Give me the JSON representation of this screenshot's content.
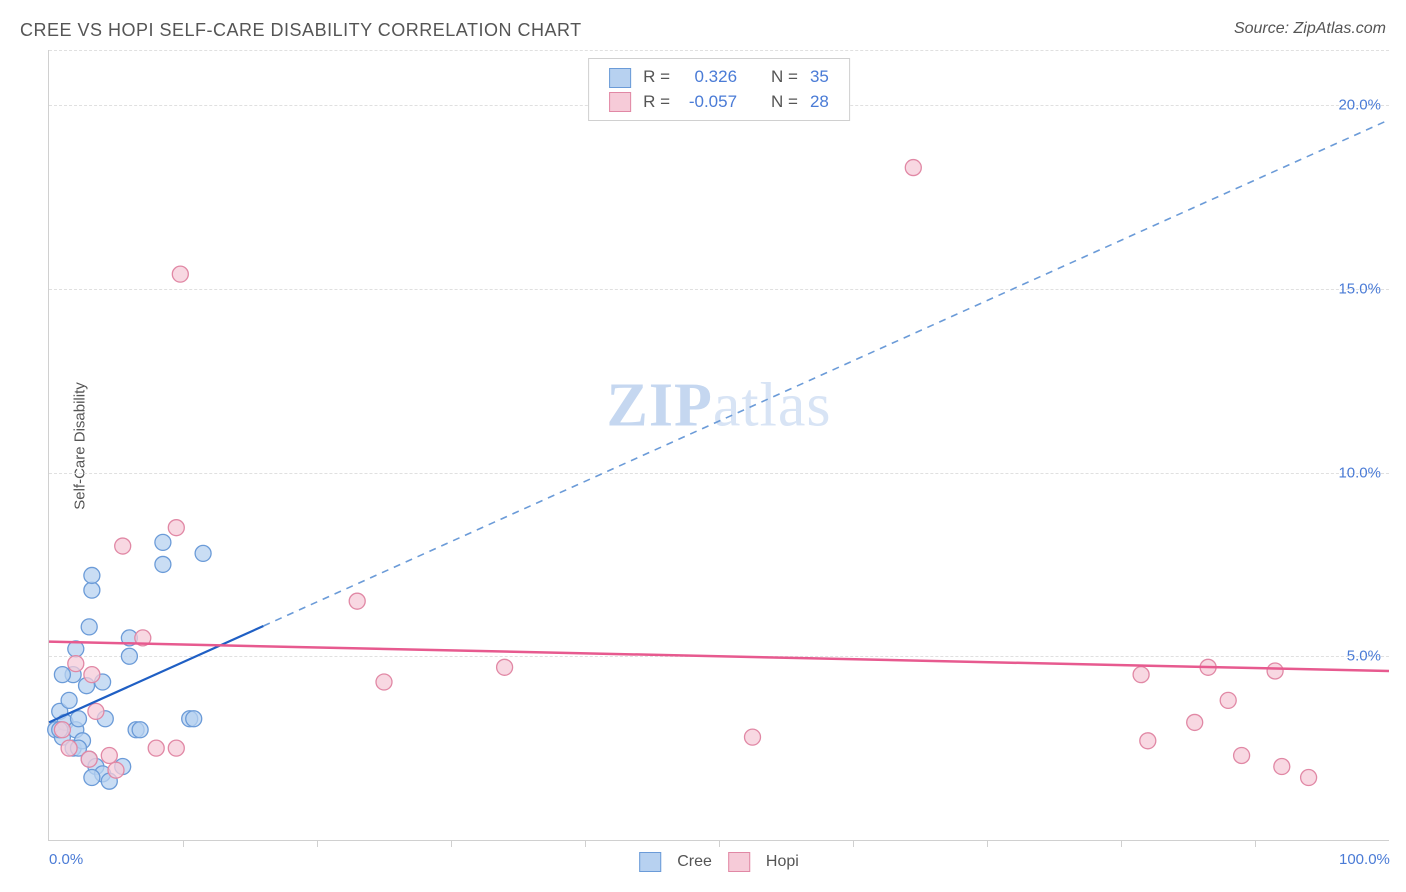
{
  "title": "CREE VS HOPI SELF-CARE DISABILITY CORRELATION CHART",
  "source": "Source: ZipAtlas.com",
  "watermark": {
    "bold": "ZIP",
    "rest": "atlas"
  },
  "chart": {
    "type": "scatter",
    "ylabel": "Self-Care Disability",
    "xlim": [
      0,
      100
    ],
    "ylim": [
      0,
      21.5
    ],
    "x_tick_labels": [
      {
        "value": 0,
        "label": "0.0%"
      },
      {
        "value": 100,
        "label": "100.0%"
      }
    ],
    "x_minor_ticks": [
      10,
      20,
      30,
      40,
      50,
      60,
      70,
      80,
      90
    ],
    "y_gridlines": [
      5,
      10,
      15,
      20,
      21.5
    ],
    "y_tick_labels": [
      {
        "value": 5,
        "label": "5.0%"
      },
      {
        "value": 10,
        "label": "10.0%"
      },
      {
        "value": 15,
        "label": "15.0%"
      },
      {
        "value": 20,
        "label": "20.0%"
      }
    ],
    "background_color": "#ffffff",
    "grid_color": "#e0e0e0",
    "series": [
      {
        "name": "Cree",
        "marker_fill": "#b7d1f0",
        "marker_stroke": "#6b9bd8",
        "marker_radius": 8,
        "line_color": "#1f5fc4",
        "line_width": 2.2,
        "dash_color": "#6b9bd8",
        "R": "0.326",
        "N": "35",
        "trend": {
          "x1": 0,
          "y1": 3.2,
          "x2": 100,
          "y2": 19.6,
          "solid_until_x": 16
        },
        "points": [
          {
            "x": 0.5,
            "y": 3.0
          },
          {
            "x": 0.8,
            "y": 3.5
          },
          {
            "x": 1.0,
            "y": 2.8
          },
          {
            "x": 1.2,
            "y": 3.2
          },
          {
            "x": 1.5,
            "y": 3.8
          },
          {
            "x": 1.8,
            "y": 2.5
          },
          {
            "x": 2.0,
            "y": 3.0
          },
          {
            "x": 2.2,
            "y": 3.3
          },
          {
            "x": 2.5,
            "y": 2.7
          },
          {
            "x": 2.8,
            "y": 4.2
          },
          {
            "x": 3.0,
            "y": 2.2
          },
          {
            "x": 3.0,
            "y": 5.8
          },
          {
            "x": 3.5,
            "y": 2.0
          },
          {
            "x": 4.0,
            "y": 1.8
          },
          {
            "x": 4.2,
            "y": 3.3
          },
          {
            "x": 4.5,
            "y": 1.6
          },
          {
            "x": 2.0,
            "y": 5.2
          },
          {
            "x": 1.8,
            "y": 4.5
          },
          {
            "x": 3.2,
            "y": 6.8
          },
          {
            "x": 3.2,
            "y": 7.2
          },
          {
            "x": 6.0,
            "y": 5.5
          },
          {
            "x": 6.0,
            "y": 5.0
          },
          {
            "x": 8.5,
            "y": 8.1
          },
          {
            "x": 8.5,
            "y": 7.5
          },
          {
            "x": 11.5,
            "y": 7.8
          },
          {
            "x": 10.5,
            "y": 3.3
          },
          {
            "x": 10.8,
            "y": 3.3
          },
          {
            "x": 5.5,
            "y": 2.0
          },
          {
            "x": 4.0,
            "y": 4.3
          },
          {
            "x": 6.5,
            "y": 3.0
          },
          {
            "x": 6.8,
            "y": 3.0
          },
          {
            "x": 3.2,
            "y": 1.7
          },
          {
            "x": 1.0,
            "y": 4.5
          },
          {
            "x": 0.8,
            "y": 3.0
          },
          {
            "x": 2.2,
            "y": 2.5
          }
        ]
      },
      {
        "name": "Hopi",
        "marker_fill": "#f6cbd8",
        "marker_stroke": "#e188a5",
        "marker_radius": 8,
        "line_color": "#e75a8f",
        "line_width": 2.5,
        "R": "-0.057",
        "N": "28",
        "trend": {
          "x1": 0,
          "y1": 5.4,
          "x2": 100,
          "y2": 4.6
        },
        "points": [
          {
            "x": 1.0,
            "y": 3.0
          },
          {
            "x": 1.5,
            "y": 2.5
          },
          {
            "x": 2.0,
            "y": 4.8
          },
          {
            "x": 3.0,
            "y": 2.2
          },
          {
            "x": 3.5,
            "y": 3.5
          },
          {
            "x": 4.5,
            "y": 2.3
          },
          {
            "x": 5.0,
            "y": 1.9
          },
          {
            "x": 5.5,
            "y": 8.0
          },
          {
            "x": 7.0,
            "y": 5.5
          },
          {
            "x": 8.0,
            "y": 2.5
          },
          {
            "x": 9.5,
            "y": 2.5
          },
          {
            "x": 9.5,
            "y": 8.5
          },
          {
            "x": 9.8,
            "y": 15.4
          },
          {
            "x": 23.0,
            "y": 6.5
          },
          {
            "x": 25.0,
            "y": 4.3
          },
          {
            "x": 34.0,
            "y": 4.7
          },
          {
            "x": 52.5,
            "y": 2.8
          },
          {
            "x": 64.5,
            "y": 18.3
          },
          {
            "x": 81.5,
            "y": 4.5
          },
          {
            "x": 82.0,
            "y": 2.7
          },
          {
            "x": 85.5,
            "y": 3.2
          },
          {
            "x": 86.5,
            "y": 4.7
          },
          {
            "x": 88.0,
            "y": 3.8
          },
          {
            "x": 89.0,
            "y": 2.3
          },
          {
            "x": 91.5,
            "y": 4.6
          },
          {
            "x": 92.0,
            "y": 2.0
          },
          {
            "x": 94.0,
            "y": 1.7
          },
          {
            "x": 3.2,
            "y": 4.5
          }
        ]
      }
    ],
    "legend_top": {
      "r_label": "R =",
      "n_label": "N =",
      "text_color": "#555555",
      "value_color": "#4a7bd6"
    },
    "legend_bottom": [
      {
        "label": "Cree",
        "fill": "#b7d1f0",
        "stroke": "#6b9bd8"
      },
      {
        "label": "Hopi",
        "fill": "#f6cbd8",
        "stroke": "#e188a5"
      }
    ]
  }
}
